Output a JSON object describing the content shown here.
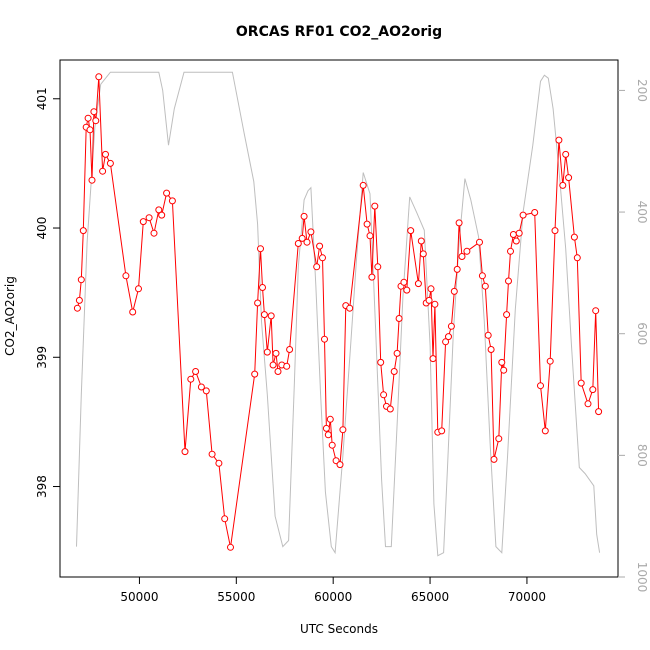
{
  "chart_data": {
    "type": "line",
    "title": "ORCAS RF01 CO2_AO2orig",
    "xlabel": "UTC Seconds",
    "ylabel": "CO2_AO2orig",
    "xlim": [
      45900,
      74700
    ],
    "ylim": [
      397.3,
      401.3
    ],
    "y2lim": [
      1000,
      150
    ],
    "x_ticks": [
      50000,
      55000,
      60000,
      65000,
      70000
    ],
    "y_ticks": [
      398,
      399,
      400,
      401
    ],
    "y2_ticks": [
      200,
      400,
      600,
      800,
      1000
    ],
    "grid": false,
    "colors": {
      "co2": "#ff0000",
      "altitude": "#bebebe",
      "axes": "#000000",
      "right_axis": "#aaaaaa"
    },
    "series": [
      {
        "type": "line+points",
        "values": [
          [
            46800,
            399.38
          ],
          [
            46900,
            399.44
          ],
          [
            47000,
            399.6
          ],
          [
            47100,
            399.98
          ],
          [
            47250,
            400.78
          ],
          [
            47350,
            400.85
          ],
          [
            47450,
            400.76
          ],
          [
            47550,
            400.37
          ],
          [
            47650,
            400.9
          ],
          [
            47750,
            400.83
          ],
          [
            47900,
            401.17
          ],
          [
            48100,
            400.44
          ],
          [
            48250,
            400.57
          ],
          [
            48500,
            400.5
          ],
          [
            49300,
            399.63
          ],
          [
            49650,
            399.35
          ],
          [
            49950,
            399.53
          ],
          [
            50200,
            400.05
          ],
          [
            50500,
            400.08
          ],
          [
            50750,
            399.96
          ],
          [
            51000,
            400.14
          ],
          [
            51150,
            400.1
          ],
          [
            51400,
            400.27
          ],
          [
            51700,
            400.21
          ],
          [
            52350,
            398.27
          ],
          [
            52650,
            398.83
          ],
          [
            52900,
            398.89
          ],
          [
            53200,
            398.77
          ],
          [
            53450,
            398.74
          ],
          [
            53750,
            398.25
          ],
          [
            54100,
            398.18
          ],
          [
            54400,
            397.75
          ],
          [
            54700,
            397.53
          ],
          [
            55950,
            398.87
          ],
          [
            56100,
            399.42
          ],
          [
            56250,
            399.84
          ],
          [
            56350,
            399.54
          ],
          [
            56450,
            399.33
          ],
          [
            56600,
            399.04
          ],
          [
            56800,
            399.32
          ],
          [
            56900,
            398.94
          ],
          [
            57050,
            399.03
          ],
          [
            57150,
            398.89
          ],
          [
            57350,
            398.94
          ],
          [
            57600,
            398.93
          ],
          [
            57750,
            399.06
          ],
          [
            58200,
            399.88
          ],
          [
            58400,
            399.92
          ],
          [
            58500,
            400.09
          ],
          [
            58650,
            399.89
          ],
          [
            58850,
            399.97
          ],
          [
            59150,
            399.7
          ],
          [
            59300,
            399.86
          ],
          [
            59450,
            399.77
          ],
          [
            59550,
            399.14
          ],
          [
            59650,
            398.45
          ],
          [
            59750,
            398.4
          ],
          [
            59850,
            398.52
          ],
          [
            59950,
            398.32
          ],
          [
            60150,
            398.2
          ],
          [
            60350,
            398.17
          ],
          [
            60500,
            398.44
          ],
          [
            60650,
            399.4
          ],
          [
            60850,
            399.38
          ],
          [
            61550,
            400.33
          ],
          [
            61750,
            400.03
          ],
          [
            61900,
            399.94
          ],
          [
            62000,
            399.62
          ],
          [
            62150,
            400.17
          ],
          [
            62300,
            399.7
          ],
          [
            62450,
            398.96
          ],
          [
            62600,
            398.71
          ],
          [
            62750,
            398.62
          ],
          [
            62950,
            398.6
          ],
          [
            63150,
            398.89
          ],
          [
            63300,
            399.03
          ],
          [
            63400,
            399.3
          ],
          [
            63500,
            399.55
          ],
          [
            63650,
            399.58
          ],
          [
            63800,
            399.52
          ],
          [
            64000,
            399.98
          ],
          [
            64400,
            399.57
          ],
          [
            64550,
            399.9
          ],
          [
            64650,
            399.8
          ],
          [
            64800,
            399.42
          ],
          [
            64950,
            399.44
          ],
          [
            65050,
            399.53
          ],
          [
            65150,
            398.99
          ],
          [
            65250,
            399.41
          ],
          [
            65400,
            398.42
          ],
          [
            65600,
            398.43
          ],
          [
            65800,
            399.12
          ],
          [
            65950,
            399.16
          ],
          [
            66100,
            399.24
          ],
          [
            66250,
            399.51
          ],
          [
            66400,
            399.68
          ],
          [
            66500,
            400.04
          ],
          [
            66650,
            399.78
          ],
          [
            66900,
            399.82
          ],
          [
            67550,
            399.89
          ],
          [
            67700,
            399.63
          ],
          [
            67850,
            399.55
          ],
          [
            68000,
            399.17
          ],
          [
            68150,
            399.06
          ],
          [
            68300,
            398.21
          ],
          [
            68550,
            398.37
          ],
          [
            68700,
            398.96
          ],
          [
            68800,
            398.9
          ],
          [
            68950,
            399.33
          ],
          [
            69050,
            399.59
          ],
          [
            69150,
            399.82
          ],
          [
            69300,
            399.95
          ],
          [
            69450,
            399.9
          ],
          [
            69600,
            399.96
          ],
          [
            69800,
            400.1
          ],
          [
            70400,
            400.12
          ],
          [
            70700,
            398.78
          ],
          [
            70950,
            398.43
          ],
          [
            71200,
            398.97
          ],
          [
            71450,
            399.98
          ],
          [
            71650,
            400.68
          ],
          [
            71850,
            400.33
          ],
          [
            72000,
            400.57
          ],
          [
            72150,
            400.39
          ],
          [
            72450,
            399.93
          ],
          [
            72600,
            399.77
          ],
          [
            72800,
            398.8
          ],
          [
            73150,
            398.64
          ],
          [
            73400,
            398.75
          ],
          [
            73550,
            399.36
          ],
          [
            73700,
            398.58
          ]
        ]
      },
      {
        "type": "line",
        "axis": "right",
        "values": [
          [
            46750,
            950
          ],
          [
            47000,
            700
          ],
          [
            47300,
            450
          ],
          [
            47700,
            260
          ],
          [
            48000,
            190
          ],
          [
            48500,
            170
          ],
          [
            51000,
            170
          ],
          [
            51200,
            200
          ],
          [
            51500,
            290
          ],
          [
            51800,
            230
          ],
          [
            52300,
            170
          ],
          [
            54800,
            170
          ],
          [
            55400,
            270
          ],
          [
            55900,
            350
          ],
          [
            56100,
            420
          ],
          [
            56300,
            580
          ],
          [
            56600,
            700
          ],
          [
            57000,
            900
          ],
          [
            57400,
            950
          ],
          [
            57700,
            940
          ],
          [
            58000,
            680
          ],
          [
            58200,
            490
          ],
          [
            58500,
            380
          ],
          [
            58700,
            365
          ],
          [
            58850,
            360
          ],
          [
            59100,
            520
          ],
          [
            59350,
            700
          ],
          [
            59600,
            860
          ],
          [
            59900,
            950
          ],
          [
            60100,
            960
          ],
          [
            60500,
            800
          ],
          [
            60900,
            620
          ],
          [
            61200,
            480
          ],
          [
            61550,
            335
          ],
          [
            61900,
            370
          ],
          [
            62200,
            600
          ],
          [
            62500,
            840
          ],
          [
            62700,
            950
          ],
          [
            63000,
            950
          ],
          [
            63300,
            750
          ],
          [
            63600,
            540
          ],
          [
            63950,
            375
          ],
          [
            64300,
            400
          ],
          [
            64700,
            430
          ],
          [
            65000,
            620
          ],
          [
            65200,
            880
          ],
          [
            65400,
            965
          ],
          [
            65700,
            960
          ],
          [
            65900,
            820
          ],
          [
            66200,
            600
          ],
          [
            66500,
            450
          ],
          [
            66800,
            345
          ],
          [
            67100,
            380
          ],
          [
            67500,
            440
          ],
          [
            67800,
            580
          ],
          [
            68100,
            780
          ],
          [
            68400,
            950
          ],
          [
            68700,
            960
          ],
          [
            69000,
            800
          ],
          [
            69400,
            560
          ],
          [
            69800,
            400
          ],
          [
            70300,
            290
          ],
          [
            70700,
            185
          ],
          [
            70900,
            175
          ],
          [
            71100,
            180
          ],
          [
            71350,
            230
          ],
          [
            71650,
            330
          ],
          [
            72000,
            460
          ],
          [
            72300,
            620
          ],
          [
            72700,
            820
          ],
          [
            73000,
            830
          ],
          [
            73450,
            850
          ],
          [
            73600,
            930
          ],
          [
            73750,
            960
          ]
        ]
      }
    ]
  }
}
